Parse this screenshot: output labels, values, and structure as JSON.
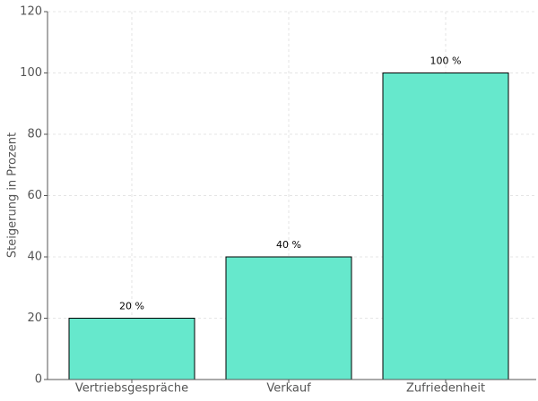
{
  "chart_data": {
    "type": "bar",
    "categories": [
      "Vertriebsgespräche",
      "Verkauf",
      "Zufriedenheit"
    ],
    "values": [
      20,
      40,
      100
    ],
    "value_labels": [
      "20 %",
      "40 %",
      "100 %"
    ],
    "color": "#66e8cc",
    "ylabel": "Steigerung in Prozent",
    "ylim": [
      0,
      120
    ],
    "yticks": [
      0,
      20,
      40,
      60,
      80,
      100,
      120
    ],
    "grid": true
  }
}
